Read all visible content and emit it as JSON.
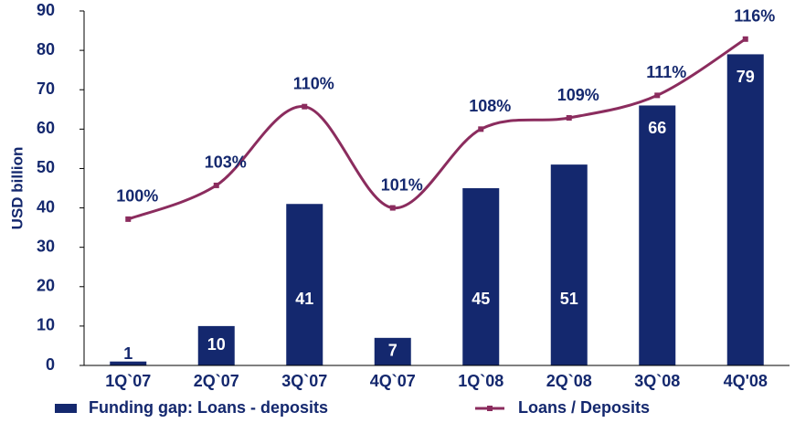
{
  "chart_data": {
    "type": "bar",
    "y_label": "USD billion",
    "categories": [
      "1Q`07",
      "2Q`07",
      "3Q`07",
      "4Q`07",
      "1Q`08",
      "2Q`08",
      "3Q`08",
      "4Q'08"
    ],
    "series": [
      {
        "name": "Funding gap: Loans - deposits",
        "type": "bar",
        "color": "#14286e",
        "values": [
          1,
          10,
          41,
          7,
          45,
          51,
          66,
          79
        ]
      },
      {
        "name": "Loans / Deposits",
        "type": "line",
        "axis": "y2",
        "color": "#8b2c5e",
        "values": [
          100,
          103,
          110,
          101,
          108,
          109,
          111,
          116
        ],
        "value_labels": [
          "100%",
          "103%",
          "110%",
          "101%",
          "108%",
          "109%",
          "111%",
          "116%"
        ]
      }
    ],
    "ylim": [
      0,
      90
    ],
    "yticks": [
      0,
      10,
      20,
      30,
      40,
      50,
      60,
      70,
      80,
      90
    ],
    "y2lim": [
      87,
      118.5
    ]
  }
}
